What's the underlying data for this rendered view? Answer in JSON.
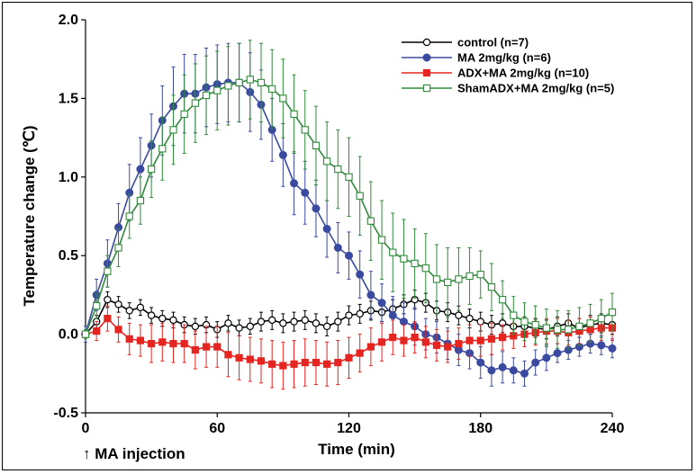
{
  "chart_data": {
    "type": "line",
    "xlabel": "Time (min)",
    "ylabel": "Temperature change (℃)",
    "xlim": [
      0,
      240
    ],
    "ylim": [
      -0.5,
      2.0
    ],
    "xticks": [
      "0",
      "60",
      "120",
      "180",
      "240"
    ],
    "yticks": [
      "-0.5",
      "0.0",
      "0.5",
      "1.0",
      "1.5",
      "2.0"
    ],
    "annotation": "↑ MA injection",
    "grid": false,
    "legend_position": "top-right",
    "x": [
      0,
      5,
      10,
      15,
      20,
      25,
      30,
      35,
      40,
      45,
      50,
      55,
      60,
      65,
      70,
      75,
      80,
      85,
      90,
      95,
      100,
      105,
      110,
      115,
      120,
      125,
      130,
      135,
      140,
      145,
      150,
      155,
      160,
      165,
      170,
      175,
      180,
      185,
      190,
      195,
      200,
      205,
      210,
      215,
      220,
      225,
      230,
      235,
      240
    ],
    "series": [
      {
        "name": "control (n=7)",
        "color": "#000000",
        "marker": "open-circle",
        "values": [
          0.0,
          0.08,
          0.22,
          0.19,
          0.15,
          0.17,
          0.12,
          0.1,
          0.09,
          0.06,
          0.05,
          0.06,
          0.03,
          0.07,
          0.04,
          0.05,
          0.08,
          0.09,
          0.07,
          0.08,
          0.09,
          0.07,
          0.05,
          0.08,
          0.12,
          0.13,
          0.15,
          0.14,
          0.16,
          0.19,
          0.22,
          0.2,
          0.15,
          0.14,
          0.12,
          0.1,
          0.08,
          0.06,
          0.07,
          0.05,
          0.05,
          0.04,
          0.03,
          0.05,
          0.07,
          0.04,
          0.06,
          0.07,
          0.06
        ],
        "errors": [
          0.02,
          0.04,
          0.05,
          0.05,
          0.05,
          0.05,
          0.05,
          0.05,
          0.05,
          0.05,
          0.05,
          0.05,
          0.05,
          0.05,
          0.05,
          0.05,
          0.06,
          0.06,
          0.06,
          0.06,
          0.06,
          0.06,
          0.06,
          0.06,
          0.06,
          0.06,
          0.06,
          0.06,
          0.06,
          0.06,
          0.06,
          0.06,
          0.06,
          0.06,
          0.06,
          0.06,
          0.06,
          0.06,
          0.06,
          0.06,
          0.06,
          0.06,
          0.06,
          0.06,
          0.06,
          0.06,
          0.06,
          0.06,
          0.06
        ]
      },
      {
        "name": "MA 2mg/kg (n=6)",
        "color": "#3a4aa0",
        "marker": "filled-circle",
        "values": [
          0.0,
          0.25,
          0.45,
          0.68,
          0.9,
          1.05,
          1.2,
          1.36,
          1.45,
          1.53,
          1.53,
          1.57,
          1.59,
          1.6,
          1.6,
          1.54,
          1.46,
          1.3,
          1.14,
          0.96,
          0.9,
          0.8,
          0.67,
          0.55,
          0.5,
          0.38,
          0.25,
          0.2,
          0.12,
          0.08,
          0.05,
          0.0,
          -0.02,
          -0.06,
          -0.1,
          -0.12,
          -0.18,
          -0.23,
          -0.21,
          -0.23,
          -0.25,
          -0.18,
          -0.15,
          -0.12,
          -0.1,
          -0.08,
          -0.06,
          -0.07,
          -0.09
        ],
        "errors": [
          0.05,
          0.1,
          0.15,
          0.15,
          0.18,
          0.2,
          0.2,
          0.22,
          0.25,
          0.25,
          0.25,
          0.25,
          0.25,
          0.25,
          0.25,
          0.25,
          0.22,
          0.2,
          0.2,
          0.2,
          0.2,
          0.18,
          0.18,
          0.16,
          0.15,
          0.15,
          0.15,
          0.12,
          0.12,
          0.12,
          0.12,
          0.1,
          0.1,
          0.1,
          0.1,
          0.1,
          0.1,
          0.1,
          0.1,
          0.08,
          0.08,
          0.08,
          0.08,
          0.06,
          0.06,
          0.06,
          0.06,
          0.06,
          0.06
        ]
      },
      {
        "name": "ADX+MA 2mg/kg (n=10)",
        "color": "#e52521",
        "marker": "filled-square",
        "values": [
          0.0,
          0.02,
          0.1,
          0.03,
          -0.03,
          -0.04,
          -0.06,
          -0.05,
          -0.06,
          -0.06,
          -0.1,
          -0.08,
          -0.08,
          -0.13,
          -0.15,
          -0.16,
          -0.17,
          -0.19,
          -0.2,
          -0.19,
          -0.18,
          -0.18,
          -0.19,
          -0.18,
          -0.15,
          -0.12,
          -0.08,
          -0.05,
          -0.02,
          -0.04,
          -0.02,
          -0.05,
          -0.07,
          -0.08,
          -0.06,
          -0.04,
          -0.04,
          -0.03,
          -0.02,
          -0.01,
          0.0,
          0.01,
          0.02,
          0.02,
          0.01,
          0.02,
          0.03,
          0.04,
          0.04
        ],
        "errors": [
          0.02,
          0.06,
          0.08,
          0.08,
          0.1,
          0.1,
          0.12,
          0.12,
          0.12,
          0.12,
          0.12,
          0.13,
          0.13,
          0.14,
          0.14,
          0.14,
          0.14,
          0.15,
          0.15,
          0.15,
          0.15,
          0.14,
          0.14,
          0.14,
          0.13,
          0.12,
          0.12,
          0.12,
          0.11,
          0.1,
          0.1,
          0.1,
          0.1,
          0.1,
          0.1,
          0.1,
          0.1,
          0.1,
          0.08,
          0.08,
          0.08,
          0.08,
          0.08,
          0.08,
          0.08,
          0.08,
          0.08,
          0.08,
          0.08
        ]
      },
      {
        "name": "ShamADX+MA 2mg/kg (n=5)",
        "color": "#2f8a3a",
        "marker": "open-square",
        "values": [
          0.0,
          0.18,
          0.4,
          0.55,
          0.75,
          0.85,
          1.05,
          1.18,
          1.3,
          1.4,
          1.47,
          1.52,
          1.55,
          1.58,
          1.6,
          1.62,
          1.6,
          1.56,
          1.5,
          1.4,
          1.3,
          1.2,
          1.1,
          1.05,
          1.0,
          0.88,
          0.72,
          0.6,
          0.52,
          0.48,
          0.45,
          0.42,
          0.35,
          0.33,
          0.35,
          0.37,
          0.38,
          0.3,
          0.22,
          0.12,
          0.08,
          0.06,
          0.04,
          0.03,
          0.03,
          0.05,
          0.07,
          0.1,
          0.14
        ],
        "errors": [
          0.03,
          0.08,
          0.1,
          0.12,
          0.14,
          0.15,
          0.18,
          0.2,
          0.22,
          0.25,
          0.25,
          0.25,
          0.25,
          0.25,
          0.25,
          0.25,
          0.25,
          0.25,
          0.25,
          0.25,
          0.25,
          0.25,
          0.25,
          0.25,
          0.25,
          0.25,
          0.25,
          0.25,
          0.25,
          0.25,
          0.22,
          0.22,
          0.22,
          0.22,
          0.2,
          0.18,
          0.15,
          0.15,
          0.12,
          0.12,
          0.12,
          0.12,
          0.12,
          0.12,
          0.12,
          0.12,
          0.12,
          0.12,
          0.12
        ]
      }
    ]
  }
}
